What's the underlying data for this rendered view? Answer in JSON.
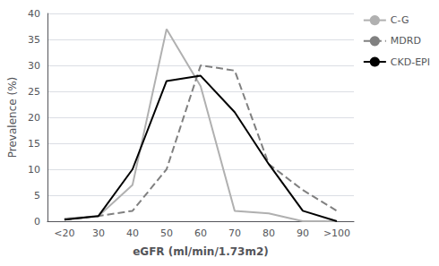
{
  "chart_data": {
    "type": "line",
    "xlabel": "eGFR (ml/min/1.73m2)",
    "ylabel": "Prevalence (%)",
    "categories": [
      "<20",
      "30",
      "40",
      "50",
      "60",
      "70",
      "80",
      "90",
      ">100"
    ],
    "series": [
      {
        "name": "C-G",
        "color": "#b0b0b0",
        "line_style": "solid",
        "values": [
          0.5,
          1,
          7,
          37,
          26,
          2,
          1.5,
          0,
          0
        ]
      },
      {
        "name": "MDRD",
        "color": "#808080",
        "line_style": "dashed",
        "values": [
          0.3,
          1,
          2,
          10,
          30,
          29,
          11,
          6,
          2
        ]
      },
      {
        "name": "CKD-EPI",
        "color": "#000000",
        "line_style": "solid",
        "values": [
          0.3,
          1,
          10,
          27,
          28,
          21,
          11,
          2,
          0
        ]
      }
    ],
    "ylim": [
      0,
      40
    ],
    "yticks": [
      0,
      5,
      10,
      15,
      20,
      25,
      30,
      35,
      40
    ],
    "grid": true,
    "legend": "upper right"
  }
}
